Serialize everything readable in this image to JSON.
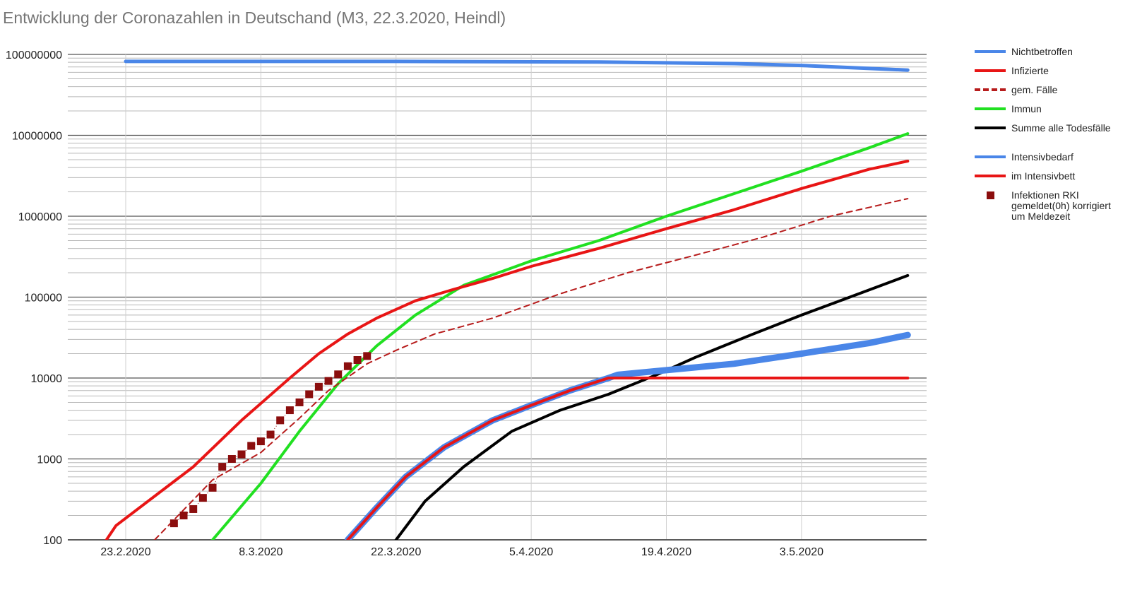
{
  "chart_data": {
    "type": "line",
    "title": "Entwicklung der Coronazahlen in Deutschand (M3, 22.3.2020, Heindl)",
    "xlabel": "",
    "ylabel": "",
    "yscale": "log",
    "ylim": [
      100,
      100000000
    ],
    "xlim": [
      "2020-02-18",
      "2020-05-15"
    ],
    "grid": true,
    "legend_position": "right",
    "y_ticks": [
      "100",
      "1000",
      "10000",
      "100000",
      "1000000",
      "10000000",
      "100000000"
    ],
    "x_ticks": [
      {
        "label": "23.2.2020",
        "date": "2020-02-23"
      },
      {
        "label": "8.3.2020",
        "date": "2020-03-08"
      },
      {
        "label": "22.3.2020",
        "date": "2020-03-22"
      },
      {
        "label": "5.4.2020",
        "date": "2020-04-05"
      },
      {
        "label": "19.4.2020",
        "date": "2020-04-19"
      },
      {
        "label": "3.5.2020",
        "date": "2020-05-03"
      }
    ],
    "series": [
      {
        "name": "Nichtbetroffen",
        "color": "#4a86e8",
        "style": "solid",
        "width": 5,
        "points": [
          [
            "2020-02-23",
            82000000
          ],
          [
            "2020-03-22",
            81900000
          ],
          [
            "2020-04-12",
            80500000
          ],
          [
            "2020-04-26",
            77000000
          ],
          [
            "2020-05-03",
            73000000
          ],
          [
            "2020-05-14",
            64000000
          ]
        ]
      },
      {
        "name": "Infizierte",
        "color": "#e81515",
        "style": "solid",
        "width": 4,
        "points": [
          [
            "2020-02-21",
            100
          ],
          [
            "2020-02-22",
            150
          ],
          [
            "2020-03-01",
            800
          ],
          [
            "2020-03-06",
            3000
          ],
          [
            "2020-03-11",
            10000
          ],
          [
            "2020-03-14",
            20000
          ],
          [
            "2020-03-17",
            35000
          ],
          [
            "2020-03-20",
            55000
          ],
          [
            "2020-03-24",
            90000
          ],
          [
            "2020-03-28",
            125000
          ],
          [
            "2020-04-01",
            170000
          ],
          [
            "2020-04-05",
            240000
          ],
          [
            "2020-04-12",
            400000
          ],
          [
            "2020-04-19",
            700000
          ],
          [
            "2020-04-26",
            1200000
          ],
          [
            "2020-05-03",
            2200000
          ],
          [
            "2020-05-10",
            3800000
          ],
          [
            "2020-05-14",
            4800000
          ]
        ]
      },
      {
        "name": "gem. Fälle",
        "color": "#b71c1c",
        "style": "dashed",
        "width": 2,
        "points": [
          [
            "2020-02-26",
            100
          ],
          [
            "2020-03-03",
            550
          ],
          [
            "2020-03-08",
            1200
          ],
          [
            "2020-03-12",
            3200
          ],
          [
            "2020-03-15",
            7000
          ],
          [
            "2020-03-19",
            15000
          ],
          [
            "2020-03-22",
            22000
          ],
          [
            "2020-03-26",
            35000
          ],
          [
            "2020-04-01",
            55000
          ],
          [
            "2020-04-08",
            110000
          ],
          [
            "2020-04-15",
            200000
          ],
          [
            "2020-04-22",
            330000
          ],
          [
            "2020-04-29",
            550000
          ],
          [
            "2020-05-06",
            1000000
          ],
          [
            "2020-05-14",
            1650000
          ]
        ]
      },
      {
        "name": "Immun",
        "color": "#21e021",
        "style": "solid",
        "width": 4,
        "points": [
          [
            "2020-03-03",
            100
          ],
          [
            "2020-03-08",
            500
          ],
          [
            "2020-03-12",
            2200
          ],
          [
            "2020-03-16",
            8500
          ],
          [
            "2020-03-20",
            25000
          ],
          [
            "2020-03-24",
            60000
          ],
          [
            "2020-03-29",
            140000
          ],
          [
            "2020-04-05",
            280000
          ],
          [
            "2020-04-12",
            500000
          ],
          [
            "2020-04-19",
            1000000
          ],
          [
            "2020-04-26",
            1900000
          ],
          [
            "2020-05-03",
            3600000
          ],
          [
            "2020-05-10",
            7000000
          ],
          [
            "2020-05-14",
            10500000
          ]
        ]
      },
      {
        "name": "Summe alle Todesfälle",
        "color": "#000000",
        "style": "solid",
        "width": 4,
        "points": [
          [
            "2020-03-22",
            100
          ],
          [
            "2020-03-25",
            300
          ],
          [
            "2020-03-29",
            800
          ],
          [
            "2020-04-03",
            2200
          ],
          [
            "2020-04-08",
            4000
          ],
          [
            "2020-04-13",
            6300
          ],
          [
            "2020-04-18",
            11000
          ],
          [
            "2020-04-22",
            18000
          ],
          [
            "2020-04-28",
            35000
          ],
          [
            "2020-05-03",
            60000
          ],
          [
            "2020-05-08",
            100000
          ],
          [
            "2020-05-14",
            185000
          ]
        ]
      },
      {
        "name": "Intensivbedarf",
        "color": "#4a86e8",
        "style": "solid",
        "width": 9,
        "points": [
          [
            "2020-03-17",
            100
          ],
          [
            "2020-03-20",
            250
          ],
          [
            "2020-03-23",
            600
          ],
          [
            "2020-03-27",
            1400
          ],
          [
            "2020-04-01",
            3000
          ],
          [
            "2020-04-05",
            4600
          ],
          [
            "2020-04-09",
            7000
          ],
          [
            "2020-04-13",
            10000
          ],
          [
            "2020-04-14",
            11000
          ],
          [
            "2020-04-19",
            12500
          ],
          [
            "2020-04-26",
            15000
          ],
          [
            "2020-05-03",
            20000
          ],
          [
            "2020-05-10",
            27000
          ],
          [
            "2020-05-14",
            34000
          ]
        ]
      },
      {
        "name": "im Intensivbett",
        "color": "#e81515",
        "style": "solid",
        "width": 4,
        "points": [
          [
            "2020-03-17",
            100
          ],
          [
            "2020-03-20",
            250
          ],
          [
            "2020-03-23",
            600
          ],
          [
            "2020-03-27",
            1400
          ],
          [
            "2020-04-01",
            3000
          ],
          [
            "2020-04-05",
            4600
          ],
          [
            "2020-04-09",
            7000
          ],
          [
            "2020-04-13",
            10000
          ],
          [
            "2020-05-14",
            10000
          ]
        ]
      },
      {
        "name": "Infektionen RKI gemeldet(0h) korrigiert um Meldezeit",
        "color": "#8b0e0e",
        "style": "marker",
        "points": [
          [
            "2020-02-28",
            160
          ],
          [
            "2020-02-29",
            200
          ],
          [
            "2020-03-01",
            240
          ],
          [
            "2020-03-02",
            330
          ],
          [
            "2020-03-03",
            440
          ],
          [
            "2020-03-04",
            800
          ],
          [
            "2020-03-05",
            1000
          ],
          [
            "2020-03-06",
            1140
          ],
          [
            "2020-03-07",
            1450
          ],
          [
            "2020-03-08",
            1650
          ],
          [
            "2020-03-09",
            2000
          ],
          [
            "2020-03-10",
            3000
          ],
          [
            "2020-03-11",
            4000
          ],
          [
            "2020-03-12",
            5000
          ],
          [
            "2020-03-13",
            6300
          ],
          [
            "2020-03-14",
            7800
          ],
          [
            "2020-03-15",
            9200
          ],
          [
            "2020-03-16",
            11100
          ],
          [
            "2020-03-17",
            14000
          ],
          [
            "2020-03-18",
            16700
          ],
          [
            "2020-03-19",
            18700
          ]
        ]
      }
    ]
  },
  "legend": [
    {
      "label": "Nichtbetroffen",
      "color": "#4a86e8",
      "style": "solid"
    },
    {
      "label": "Infizierte",
      "color": "#e81515",
      "style": "solid"
    },
    {
      "label": "gem. Fälle",
      "color": "#b71c1c",
      "style": "dashed"
    },
    {
      "label": "Immun",
      "color": "#21e021",
      "style": "solid"
    },
    {
      "label": "Summe alle Todesfälle",
      "color": "#000000",
      "style": "solid"
    },
    {
      "label": "Intensivbedarf",
      "color": "#4a86e8",
      "style": "solid"
    },
    {
      "label": "im Intensivbett",
      "color": "#e81515",
      "style": "solid"
    },
    {
      "label": "Infektionen RKI gemeldet(0h) korrigiert um Meldezeit",
      "color": "#8b0e0e",
      "style": "marker"
    }
  ]
}
